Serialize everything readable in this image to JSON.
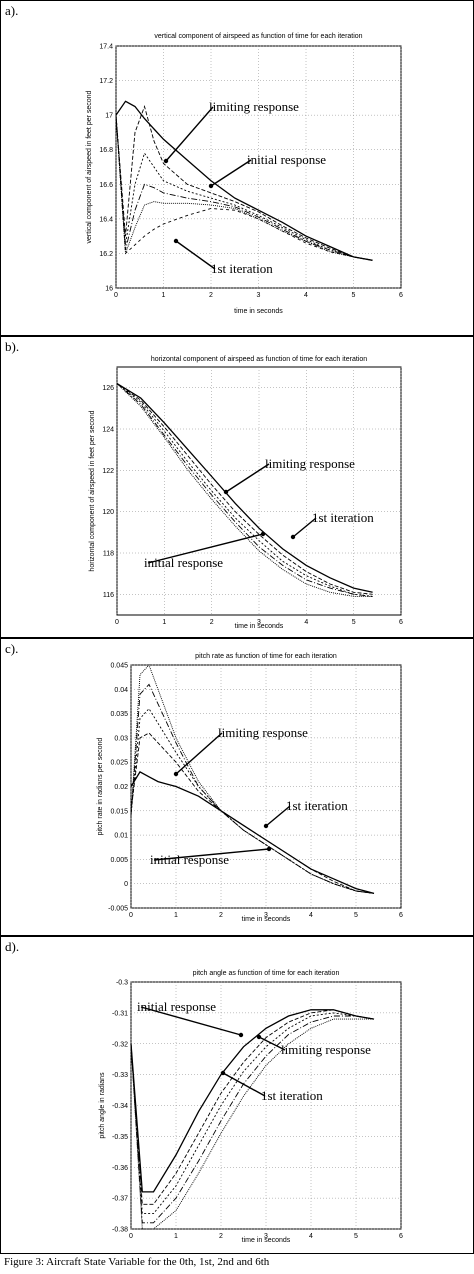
{
  "caption": "Figure 3: Aircraft State Variable for the 0th, 1st, 2nd and 6th",
  "chart_data": [
    {
      "panel_label": "a).",
      "type": "line",
      "title": "vertical component of airspeed as function of time for each iteration",
      "xlabel": "time in seconds",
      "ylabel": "vertical component of airspeed in feet per second",
      "xlim": [
        0,
        6
      ],
      "ylim": [
        16.0,
        17.4
      ],
      "xticks": [
        "0",
        "1",
        "2",
        "3",
        "4",
        "5",
        "6"
      ],
      "yticks": [
        "16",
        "16.2",
        "16.4",
        "16.6",
        "16.8",
        "17",
        "17.2",
        "17.4"
      ],
      "grid": true,
      "x": [
        0,
        0.2,
        0.4,
        0.6,
        0.8,
        1.0,
        1.5,
        2.0,
        2.5,
        3.0,
        3.5,
        4.0,
        4.5,
        5.0,
        5.4
      ],
      "series": [
        {
          "values": [
            17.0,
            17.08,
            17.05,
            16.98,
            16.92,
            16.86,
            16.74,
            16.62,
            16.52,
            16.45,
            16.38,
            16.3,
            16.24,
            16.18,
            16.16
          ]
        },
        {
          "values": [
            17.0,
            16.3,
            16.9,
            17.05,
            16.85,
            16.72,
            16.6,
            16.55,
            16.5,
            16.44,
            16.36,
            16.29,
            16.23,
            16.18,
            16.16
          ]
        },
        {
          "values": [
            17.0,
            16.25,
            16.6,
            16.78,
            16.7,
            16.62,
            16.56,
            16.52,
            16.48,
            16.42,
            16.35,
            16.28,
            16.22,
            16.18,
            16.16
          ]
        },
        {
          "values": [
            17.0,
            16.22,
            16.45,
            16.6,
            16.58,
            16.55,
            16.52,
            16.5,
            16.47,
            16.41,
            16.34,
            16.27,
            16.22,
            16.18,
            16.16
          ]
        },
        {
          "values": [
            17.0,
            16.2,
            16.35,
            16.48,
            16.5,
            16.49,
            16.49,
            16.48,
            16.46,
            16.4,
            16.33,
            16.27,
            16.21,
            16.18,
            16.16
          ]
        },
        {
          "values": [
            17.0,
            16.2,
            16.25,
            16.3,
            16.34,
            16.37,
            16.42,
            16.46,
            16.45,
            16.4,
            16.33,
            16.26,
            16.21,
            16.18,
            16.16
          ]
        }
      ],
      "annotations": [
        "limiting response",
        "initial response",
        "1st iteration"
      ]
    },
    {
      "panel_label": "b).",
      "type": "line",
      "title": "horizontal component of airspeed as function of time for each iteration",
      "xlabel": "time in seconds",
      "ylabel": "horizontal component of airspeed in feet per second",
      "xlim": [
        0,
        6
      ],
      "ylim": [
        115,
        127
      ],
      "xticks": [
        "0",
        "1",
        "2",
        "3",
        "4",
        "5",
        "6"
      ],
      "yticks": [
        "116",
        "118",
        "120",
        "122",
        "124",
        "126"
      ],
      "grid": true,
      "x": [
        0,
        0.5,
        1.0,
        1.5,
        2.0,
        2.5,
        3.0,
        3.5,
        4.0,
        4.5,
        5.0,
        5.4
      ],
      "series": [
        {
          "values": [
            126.2,
            125.5,
            124.3,
            123.0,
            121.7,
            120.4,
            119.2,
            118.2,
            117.4,
            116.8,
            116.3,
            116.1
          ]
        },
        {
          "values": [
            126.2,
            125.4,
            124.1,
            122.7,
            121.3,
            120.0,
            118.9,
            117.9,
            117.1,
            116.5,
            116.1,
            116.0
          ]
        },
        {
          "values": [
            126.2,
            125.3,
            123.9,
            122.4,
            121.0,
            119.7,
            118.6,
            117.6,
            116.9,
            116.4,
            116.0,
            115.9
          ]
        },
        {
          "values": [
            126.2,
            125.2,
            123.7,
            122.2,
            120.8,
            119.5,
            118.3,
            117.4,
            116.7,
            116.3,
            116.0,
            115.9
          ]
        },
        {
          "values": [
            126.2,
            125.1,
            123.6,
            122.0,
            120.6,
            119.3,
            118.1,
            117.2,
            116.5,
            116.1,
            115.9,
            115.9
          ]
        }
      ],
      "annotations": [
        "limiting response",
        "1st iteration",
        "initial response"
      ]
    },
    {
      "panel_label": "c).",
      "type": "line",
      "title": "pitch rate as function of time for each iteration",
      "xlabel": "time in seconds",
      "ylabel": "pitch rate in radians per second",
      "xlim": [
        0,
        6
      ],
      "ylim": [
        -0.005,
        0.045
      ],
      "xticks": [
        "0",
        "1",
        "2",
        "3",
        "4",
        "5",
        "6"
      ],
      "yticks": [
        "-0.005",
        "0",
        "0.005",
        "0.01",
        "0.015",
        "0.02",
        "0.025",
        "0.03",
        "0.035",
        "0.04",
        "0.045"
      ],
      "grid": true,
      "x": [
        0,
        0.2,
        0.4,
        0.6,
        0.8,
        1.0,
        1.5,
        2.0,
        2.5,
        3.0,
        3.5,
        4.0,
        4.5,
        5.0,
        5.4
      ],
      "series": [
        {
          "values": [
            0.02,
            0.023,
            0.022,
            0.021,
            0.0205,
            0.02,
            0.018,
            0.015,
            0.012,
            0.009,
            0.006,
            0.003,
            0.001,
            -0.001,
            -0.002
          ]
        },
        {
          "values": [
            0.015,
            0.03,
            0.031,
            0.029,
            0.027,
            0.025,
            0.019,
            0.015,
            0.012,
            0.009,
            0.006,
            0.003,
            0.0005,
            -0.0015,
            -0.002
          ]
        },
        {
          "values": [
            0.014,
            0.034,
            0.036,
            0.033,
            0.03,
            0.027,
            0.02,
            0.015,
            0.011,
            0.008,
            0.005,
            0.002,
            0.0,
            -0.0015,
            -0.002
          ]
        },
        {
          "values": [
            0.014,
            0.039,
            0.041,
            0.037,
            0.033,
            0.029,
            0.02,
            0.015,
            0.011,
            0.008,
            0.005,
            0.002,
            0.0,
            -0.0015,
            -0.002
          ]
        },
        {
          "values": [
            0.014,
            0.043,
            0.045,
            0.04,
            0.035,
            0.03,
            0.021,
            0.015,
            0.011,
            0.008,
            0.005,
            0.002,
            0.0,
            -0.0015,
            -0.002
          ]
        }
      ],
      "annotations": [
        "limiting response",
        "1st iteration",
        "initial response"
      ]
    },
    {
      "panel_label": "d).",
      "type": "line",
      "title": "pitch angle as function of time for each iteration",
      "xlabel": "time in seconds",
      "ylabel": "pitch angle in radians",
      "xlim": [
        0,
        6
      ],
      "ylim": [
        -0.38,
        -0.3
      ],
      "xticks": [
        "0",
        "1",
        "2",
        "3",
        "4",
        "5",
        "6"
      ],
      "yticks": [
        "-0.3",
        "-0.31",
        "-0.32",
        "-0.33",
        "-0.34",
        "-0.35",
        "-0.36",
        "-0.37",
        "-0.38"
      ],
      "grid": true,
      "x": [
        0,
        0.25,
        0.5,
        1.0,
        1.5,
        2.0,
        2.5,
        3.0,
        3.5,
        4.0,
        4.5,
        5.0,
        5.4
      ],
      "series": [
        {
          "values": [
            -0.32,
            -0.368,
            -0.368,
            -0.356,
            -0.342,
            -0.33,
            -0.321,
            -0.315,
            -0.311,
            -0.309,
            -0.309,
            -0.311,
            -0.312
          ]
        },
        {
          "values": [
            -0.32,
            -0.372,
            -0.372,
            -0.362,
            -0.349,
            -0.336,
            -0.326,
            -0.318,
            -0.313,
            -0.31,
            -0.309,
            -0.311,
            -0.312
          ]
        },
        {
          "values": [
            -0.32,
            -0.375,
            -0.375,
            -0.366,
            -0.353,
            -0.34,
            -0.329,
            -0.321,
            -0.315,
            -0.311,
            -0.31,
            -0.311,
            -0.312
          ]
        },
        {
          "values": [
            -0.32,
            -0.378,
            -0.378,
            -0.37,
            -0.358,
            -0.345,
            -0.333,
            -0.324,
            -0.317,
            -0.313,
            -0.311,
            -0.311,
            -0.312
          ]
        },
        {
          "values": [
            -0.32,
            -0.38,
            -0.38,
            -0.374,
            -0.362,
            -0.349,
            -0.337,
            -0.327,
            -0.32,
            -0.315,
            -0.312,
            -0.312,
            -0.312
          ]
        }
      ],
      "annotations": [
        "initial response",
        "limiting response",
        "1st iteration"
      ]
    }
  ]
}
